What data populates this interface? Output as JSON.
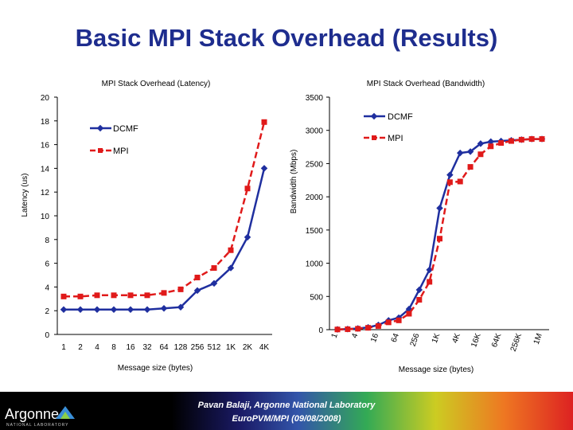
{
  "slide": {
    "title": "Basic MPI Stack Overhead (Results)",
    "footer_line1": "Pavan Balaji, Argonne National Laboratory",
    "footer_line2": "EuroPVM/MPI (09/08/2008)",
    "logo_text": "Argonne",
    "logo_subtext": "NATIONAL LABORATORY"
  },
  "colors": {
    "title": "#1e2d8e",
    "dcmf": "#1f2f9f",
    "mpi": "#e01a1a"
  },
  "chart_data": [
    {
      "type": "line",
      "title": "MPI Stack Overhead (Latency)",
      "xlabel": "Message size (bytes)",
      "ylabel": "Latency (us)",
      "categories": [
        "1",
        "2",
        "4",
        "8",
        "16",
        "32",
        "64",
        "128",
        "256",
        "512",
        "1K",
        "2K",
        "4K"
      ],
      "ylim": [
        0,
        20
      ],
      "yticks": [
        "0",
        "2",
        "4",
        "6",
        "8",
        "10",
        "12",
        "14",
        "16",
        "18",
        "20"
      ],
      "grid": false,
      "legend": "upper-left",
      "series": [
        {
          "name": "DCMF",
          "values": [
            2.1,
            2.1,
            2.1,
            2.1,
            2.1,
            2.1,
            2.2,
            2.3,
            3.7,
            4.3,
            5.6,
            8.2,
            14.0
          ]
        },
        {
          "name": "MPI",
          "values": [
            3.2,
            3.2,
            3.3,
            3.3,
            3.3,
            3.3,
            3.5,
            3.8,
            4.8,
            5.6,
            7.1,
            12.3,
            17.9
          ]
        }
      ]
    },
    {
      "type": "line",
      "title": "MPI Stack Overhead (Bandwidth)",
      "xlabel": "Message size (bytes)",
      "ylabel": "Bandwidth (Mbps)",
      "xtick_labels": [
        "1",
        "4",
        "16",
        "64",
        "256",
        "1K",
        "4K",
        "16K",
        "64K",
        "256K",
        "1M"
      ],
      "ylim": [
        0,
        3500
      ],
      "yticks": [
        "0",
        "500",
        "1000",
        "1500",
        "2000",
        "2500",
        "3000",
        "3500"
      ],
      "grid": false,
      "legend": "upper-right",
      "series": [
        {
          "name": "DCMF",
          "values": [
            4,
            9,
            18,
            35,
            70,
            140,
            180,
            310,
            600,
            900,
            1830,
            2330,
            2660,
            2680,
            2800,
            2830,
            2840,
            2850,
            2860,
            2870,
            2870
          ]
        },
        {
          "name": "MPI",
          "values": [
            3,
            7,
            14,
            28,
            55,
            110,
            140,
            240,
            450,
            720,
            1370,
            2220,
            2230,
            2450,
            2640,
            2760,
            2810,
            2840,
            2860,
            2870,
            2870
          ]
        }
      ]
    }
  ]
}
